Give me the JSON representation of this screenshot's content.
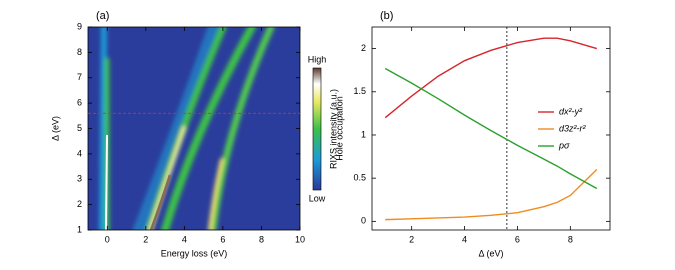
{
  "chart_data": [
    {
      "type": "heatmap",
      "panel": "(a)",
      "xlabel": "Energy loss (eV)",
      "ylabel": "Δ (eV)",
      "xlim": [
        -1,
        10
      ],
      "xticks": [
        0,
        2,
        4,
        6,
        8,
        10
      ],
      "ylim": [
        1,
        9
      ],
      "yticks": [
        1,
        2,
        3,
        4,
        5,
        6,
        7,
        8,
        9
      ],
      "hline": 5.6,
      "colorbar": {
        "label": "RIXS intensity (a.u.)",
        "high": "High",
        "low": "Low"
      }
    },
    {
      "type": "line",
      "panel": "(b)",
      "xlabel": "Δ (eV)",
      "ylabel": "Hole occupation",
      "xlim": [
        0.5,
        9.5
      ],
      "xticks": [
        2,
        4,
        6,
        8
      ],
      "ylim": [
        -0.1,
        2.25
      ],
      "yticks": [
        0,
        0.5,
        1,
        1.5,
        2
      ],
      "vline": 5.6,
      "legend": "right",
      "x": [
        1,
        2,
        3,
        4,
        5,
        6,
        7,
        7.5,
        8,
        9
      ],
      "series": [
        {
          "name": "dx²-y²",
          "color": "#d7262b",
          "values": [
            1.2,
            1.45,
            1.68,
            1.86,
            1.98,
            2.07,
            2.12,
            2.12,
            2.09,
            2.0
          ]
        },
        {
          "name": "d3z²-r²",
          "color": "#f08c1f",
          "values": [
            0.02,
            0.03,
            0.04,
            0.05,
            0.07,
            0.1,
            0.17,
            0.22,
            0.3,
            0.6
          ]
        },
        {
          "name": "pσ",
          "color": "#2ca02c",
          "values": [
            1.77,
            1.6,
            1.42,
            1.23,
            1.05,
            0.88,
            0.72,
            0.64,
            0.55,
            0.38
          ]
        }
      ]
    }
  ]
}
